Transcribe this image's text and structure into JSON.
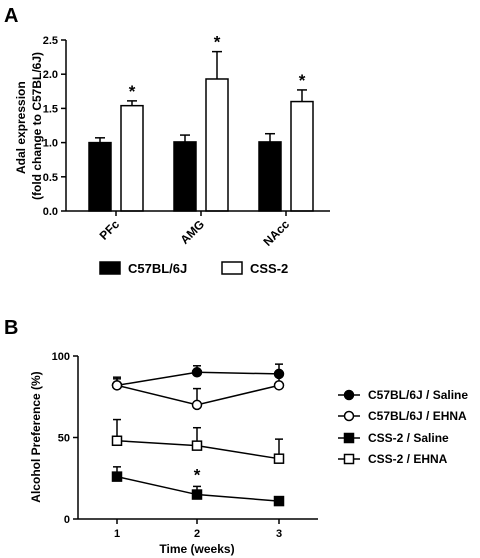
{
  "chart_data": [
    {
      "panel_label": "A",
      "type": "bar",
      "ylabel_lines": [
        "Adal expression",
        "(fold change to C57BL/6J)"
      ],
      "ylim": [
        0,
        2.5
      ],
      "yticks": [
        "0.0",
        "0.5",
        "1.0",
        "1.5",
        "2.0",
        "2.5"
      ],
      "categories": [
        "PFc",
        "AMG",
        "NAcc"
      ],
      "series": [
        {
          "name": "C57BL/6J",
          "fill": "#000000",
          "values": [
            1.0,
            1.01,
            1.01
          ],
          "errors": [
            0.07,
            0.1,
            0.12
          ]
        },
        {
          "name": "CSS-2",
          "fill": "#ffffff",
          "values": [
            1.54,
            1.93,
            1.6
          ],
          "errors": [
            0.07,
            0.4,
            0.17
          ]
        }
      ],
      "significance": [
        {
          "category": "PFc",
          "series": "CSS-2",
          "label": "*"
        },
        {
          "category": "AMG",
          "series": "CSS-2",
          "label": "*"
        },
        {
          "category": "NAcc",
          "series": "CSS-2",
          "label": "*"
        }
      ],
      "legend_position": "bottom"
    },
    {
      "panel_label": "B",
      "type": "line",
      "xlabel": "Time (weeks)",
      "ylabel": "Alcohol Preference (%)",
      "ylim": [
        0,
        100
      ],
      "yticks": [
        "0",
        "50",
        "100"
      ],
      "x": [
        1,
        2,
        3
      ],
      "xticks": [
        "1",
        "2",
        "3"
      ],
      "series": [
        {
          "name": "C57BL/6J / Saline",
          "marker": "circle",
          "filled": true,
          "values": [
            82,
            90,
            89
          ],
          "errors": [
            5,
            4,
            6
          ]
        },
        {
          "name": "C57BL/6J / EHNA",
          "marker": "circle",
          "filled": false,
          "values": [
            82,
            70,
            82
          ],
          "errors": [
            4,
            10,
            6
          ]
        },
        {
          "name": "CSS-2 / Saline",
          "marker": "square",
          "filled": true,
          "values": [
            26,
            15,
            11
          ],
          "errors": [
            6,
            5,
            1
          ]
        },
        {
          "name": "CSS-2 / EHNA",
          "marker": "square",
          "filled": false,
          "values": [
            48,
            45,
            37
          ],
          "errors": [
            13,
            11,
            12
          ]
        }
      ],
      "significance": [
        {
          "x": 2,
          "series": "CSS-2 / Saline",
          "label": "*"
        }
      ],
      "legend_position": "right"
    }
  ]
}
